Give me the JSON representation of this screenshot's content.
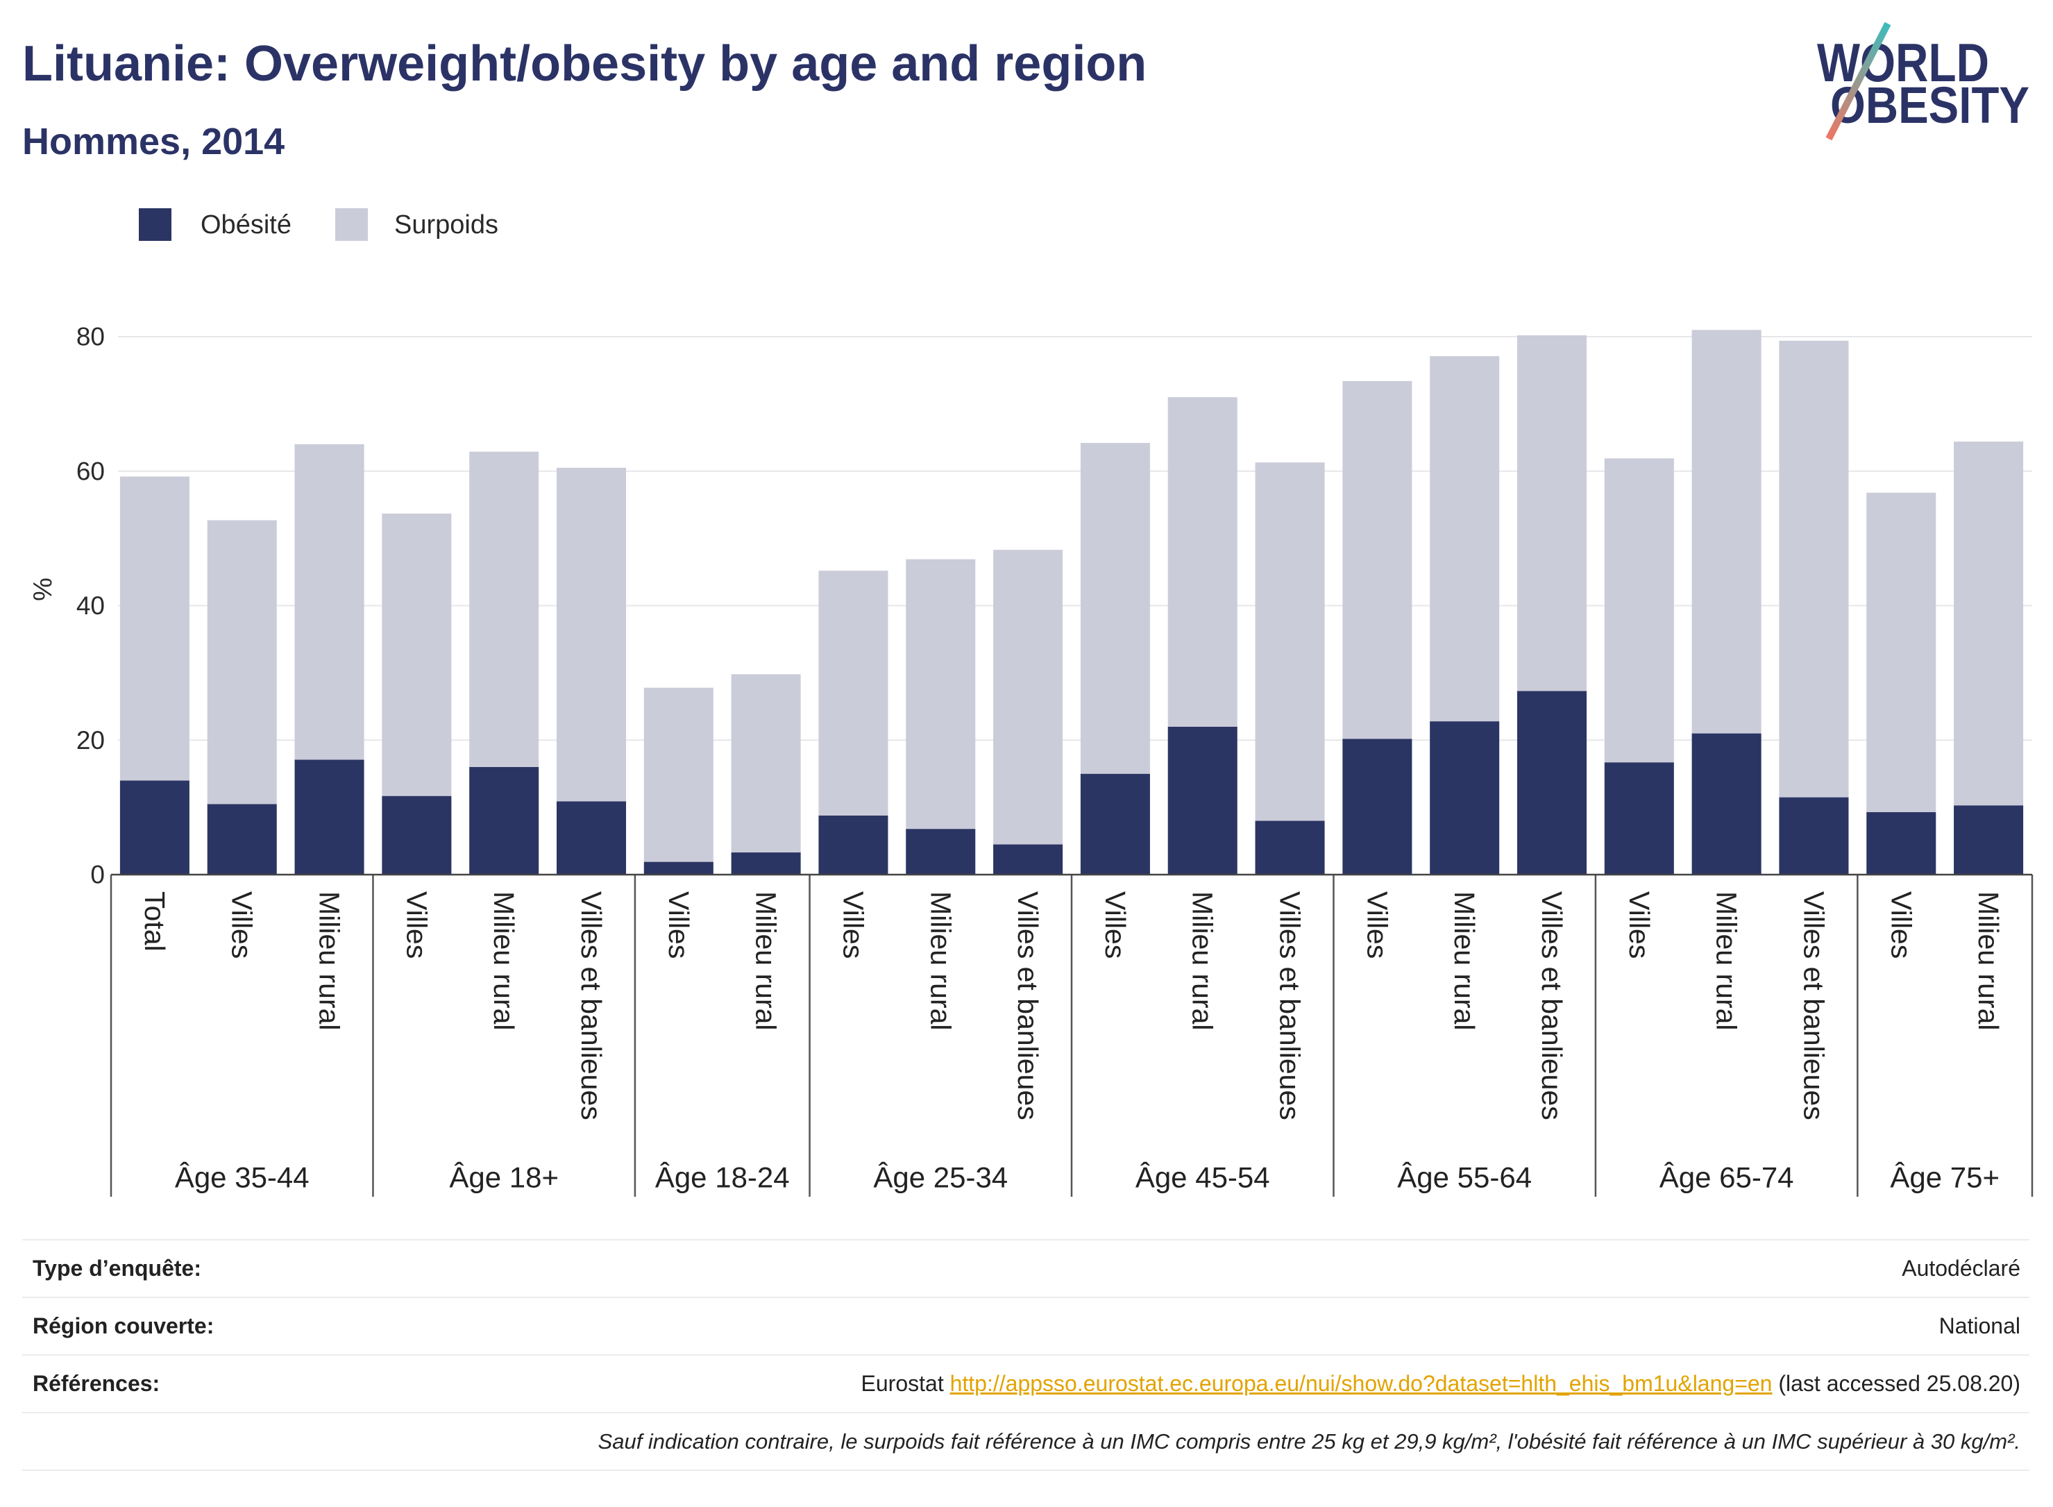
{
  "chart_data": {
    "type": "bar",
    "stacked": true,
    "title": "Lituanie: Overweight/obesity by age and region",
    "subtitle": "Hommes, 2014",
    "ylabel": "%",
    "y_ticks": [
      0,
      20,
      40,
      60,
      80
    ],
    "grid": "horizontal",
    "legend_position": "top-left",
    "groups": [
      {
        "label": "Âge 35-44",
        "categories": [
          "Total",
          "Villes",
          "Milieu rural"
        ]
      },
      {
        "label": "Âge 18+",
        "categories": [
          "Villes",
          "Milieu rural",
          "Villes et banlieues"
        ]
      },
      {
        "label": "Âge 18-24",
        "categories": [
          "Villes",
          "Milieu rural"
        ]
      },
      {
        "label": "Âge 25-34",
        "categories": [
          "Villes",
          "Milieu rural",
          "Villes et banlieues"
        ]
      },
      {
        "label": "Âge 45-54",
        "categories": [
          "Villes",
          "Milieu rural",
          "Villes et banlieues"
        ]
      },
      {
        "label": "Âge 55-64",
        "categories": [
          "Villes",
          "Milieu rural",
          "Villes et banlieues"
        ]
      },
      {
        "label": "Âge 65-74",
        "categories": [
          "Villes",
          "Milieu rural",
          "Villes et banlieues"
        ]
      },
      {
        "label": "Âge 75+",
        "categories": [
          "Villes",
          "Milieu rural"
        ]
      }
    ],
    "series": [
      {
        "name": "Obésité",
        "color": "#2b3563",
        "values": [
          14.0,
          10.5,
          17.1,
          11.7,
          16.0,
          10.9,
          1.9,
          3.3,
          8.8,
          6.8,
          4.5,
          15.0,
          22.0,
          8.0,
          20.2,
          22.8,
          27.3,
          16.7,
          21.0,
          11.5,
          9.3,
          10.3
        ]
      },
      {
        "name": "Surpoids",
        "color": "#cbccd9",
        "values": [
          45.2,
          42.2,
          46.9,
          42.0,
          46.9,
          49.6,
          25.9,
          26.5,
          36.4,
          40.1,
          43.8,
          49.2,
          49.0,
          53.3,
          53.2,
          54.3,
          52.9,
          45.2,
          60.0,
          67.9,
          47.5,
          54.1
        ]
      }
    ]
  },
  "logo": {
    "line1": "WORLD",
    "line2": "OBESITY",
    "text_color": "#2b3366",
    "slash_colors": [
      "#3dbcbc",
      "#ee7763"
    ]
  },
  "info_table": {
    "survey_type": {
      "label": "Type d’enquête:",
      "value": "Autodéclaré"
    },
    "region": {
      "label": "Région couverte:",
      "value": "National"
    },
    "references": {
      "label": "Références:",
      "source": "Eurostat",
      "link": "http://appsso.eurostat.ec.europa.eu/nui/show.do?dataset=hlth_ehis_bm1u&lang=en",
      "accessed": "(last accessed 25.08.20)"
    },
    "note": "Sauf indication contraire, le surpoids fait référence à un IMC compris entre 25 kg et 29,9 kg/m², l'obésité fait référence à un IMC supérieur à 30 kg/m²."
  }
}
